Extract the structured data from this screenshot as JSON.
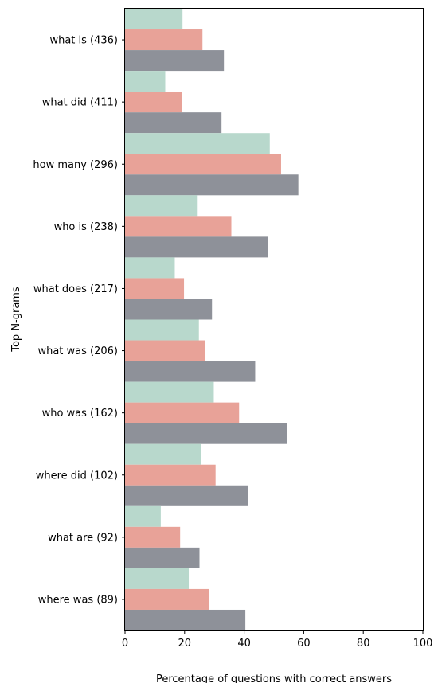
{
  "chart_data": {
    "type": "bar",
    "orientation": "horizontal",
    "categories": [
      "what is (436)",
      "what did (411)",
      "how many (296)",
      "who is (238)",
      "what does (217)",
      "what was (206)",
      "who was (162)",
      "where did (102)",
      "what are (92)",
      "where was (89)"
    ],
    "series": [
      {
        "values": [
          19.3,
          13.5,
          48.6,
          24.4,
          16.7,
          24.8,
          29.8,
          25.5,
          12.0,
          21.4
        ],
        "color": "#b8d8cc"
      },
      {
        "values": [
          26.0,
          19.2,
          52.4,
          35.7,
          19.8,
          26.8,
          38.3,
          30.4,
          18.5,
          28.1
        ],
        "color": "#e8a298"
      },
      {
        "values": [
          33.2,
          32.4,
          58.2,
          48.0,
          29.2,
          43.7,
          54.3,
          41.2,
          25.0,
          40.4
        ],
        "color": "#8e9199"
      }
    ],
    "xlabel": "Percentage of questions with correct answers",
    "ylabel": "Top N-grams",
    "xlim": [
      0,
      100
    ],
    "xticks": [
      "0",
      "20",
      "40",
      "60",
      "80",
      "100"
    ],
    "grid": false,
    "legend": "none"
  }
}
